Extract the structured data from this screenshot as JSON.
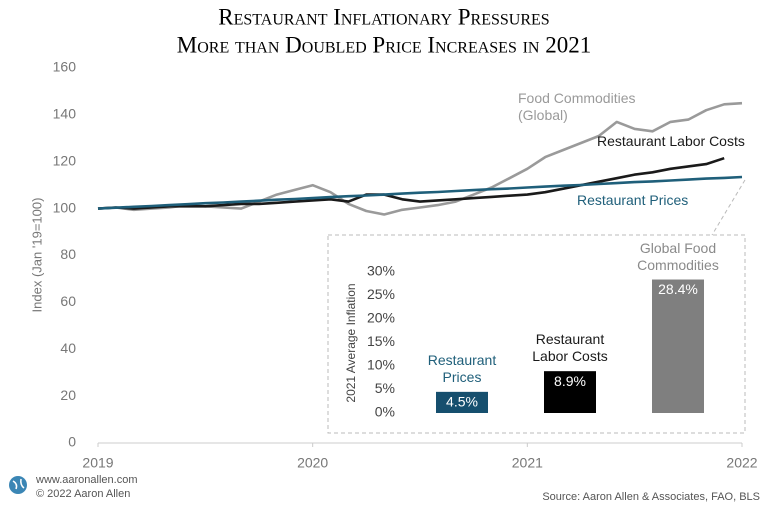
{
  "chart_data": [
    {
      "type": "line",
      "title": "Restaurant Inflationary Pressures",
      "subtitle": "More than Doubled Price Increases in 2021",
      "y_label": "Index (Jan '19=100)",
      "x": [
        2019,
        2019.083,
        2019.167,
        2019.25,
        2019.333,
        2019.417,
        2019.5,
        2019.583,
        2019.667,
        2019.75,
        2019.833,
        2019.917,
        2020,
        2020.083,
        2020.167,
        2020.25,
        2020.333,
        2020.417,
        2020.5,
        2020.583,
        2020.667,
        2020.75,
        2020.833,
        2020.917,
        2021,
        2021.083,
        2021.167,
        2021.25,
        2021.333,
        2021.417,
        2021.5,
        2021.583,
        2021.667,
        2021.75,
        2021.833,
        2021.917,
        2022
      ],
      "xlim": [
        2019,
        2022
      ],
      "xticks": [
        2019,
        2020,
        2021,
        2022
      ],
      "ylim": [
        0,
        160
      ],
      "yticks": [
        0,
        20,
        40,
        60,
        80,
        100,
        120,
        140,
        160
      ],
      "grid": false,
      "series": [
        {
          "name": "Food Commodities (Global)",
          "color": "#9a9a9a",
          "values": [
            100,
            100.5,
            99.5,
            100,
            100.5,
            101.5,
            101,
            100.5,
            100,
            103,
            106,
            108,
            110,
            107,
            102,
            99,
            97.5,
            99.5,
            100.5,
            101.5,
            103,
            106,
            109,
            113,
            117,
            122,
            125,
            128,
            131,
            137,
            134,
            133,
            137,
            138,
            142,
            144.5,
            145
          ]
        },
        {
          "name": "Restaurant Labor Costs",
          "color": "#1a1a1a",
          "values": [
            100,
            100.5,
            100,
            100.5,
            101,
            101,
            101,
            101.5,
            102,
            102,
            102.5,
            103,
            103.5,
            104,
            103,
            106,
            106,
            104,
            103,
            103.5,
            104,
            104.5,
            105,
            105.5,
            106,
            107,
            108.5,
            110,
            111.5,
            113,
            114.5,
            115.5,
            117,
            118,
            119,
            121.5,
            null
          ]
        },
        {
          "name": "Restaurant Prices",
          "color": "#1f5f7a",
          "values": [
            100,
            100.4,
            100.8,
            101.1,
            101.5,
            101.9,
            102.3,
            102.6,
            103,
            103.4,
            103.8,
            104.1,
            104.5,
            104.9,
            105.3,
            105.6,
            106,
            106.4,
            106.8,
            107.1,
            107.5,
            107.9,
            108.3,
            108.6,
            109,
            109.4,
            109.8,
            110.1,
            110.5,
            110.9,
            111.3,
            111.6,
            112,
            112.4,
            112.8,
            113.1,
            113.5
          ]
        }
      ]
    },
    {
      "type": "bar",
      "y_label": "2021 Average Inflation",
      "categories": [
        "Restaurant Prices",
        "Restaurant Labor Costs",
        "Global Food Commodities"
      ],
      "values": [
        4.5,
        8.9,
        28.4
      ],
      "value_labels": [
        "4.5%",
        "8.9%",
        "28.4%"
      ],
      "colors": [
        "#164f6e",
        "#000000",
        "#7f7f7f"
      ],
      "label_colors": [
        "#1f5f7a",
        "#1a1a1a",
        "#8a8a8a"
      ],
      "ylim": [
        0,
        30
      ],
      "yticks": [
        {
          "value": 0,
          "label": "0%"
        },
        {
          "value": 5,
          "label": "5%"
        },
        {
          "value": 10,
          "label": "10%"
        },
        {
          "value": 15,
          "label": "15%"
        },
        {
          "value": 20,
          "label": "20%"
        },
        {
          "value": 25,
          "label": "25%"
        },
        {
          "value": 30,
          "label": "30%"
        }
      ]
    }
  ],
  "footer": {
    "website": "www.aaronallen.com",
    "copyright": "© 2022 Aaron Allen",
    "source": "Source: Aaron Allen & Associates, FAO, BLS"
  }
}
